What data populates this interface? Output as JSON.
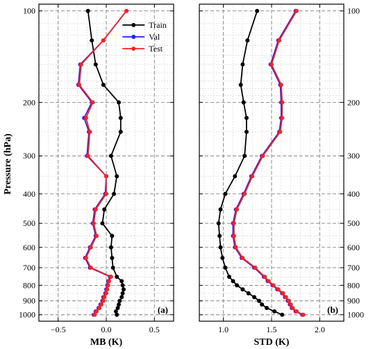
{
  "chart_data": [
    {
      "panel_label": "(a)",
      "type": "line",
      "xlabel": "MB (K)",
      "ylabel": "Pressure (hPa)",
      "xlim": [
        -0.7,
        0.7
      ],
      "ylim": [
        1000,
        100
      ],
      "y_scale": "log",
      "x_ticks": [
        -0.5,
        0.0,
        0.5
      ],
      "x_tick_labels": [
        "−0.5",
        "0.0",
        "0.5"
      ],
      "y_ticks": [
        100,
        200,
        300,
        400,
        500,
        600,
        700,
        800,
        900,
        1000
      ],
      "y_tick_labels": [
        "100",
        "200",
        "300",
        "400",
        "500",
        "600",
        "700",
        "800",
        "900",
        "1000"
      ],
      "grid": true,
      "legend": {
        "placement": "top-right",
        "entries": [
          "Train",
          "Val",
          "Test"
        ]
      },
      "y": [
        100,
        125,
        150,
        175,
        200,
        225,
        250,
        300,
        350,
        400,
        450,
        500,
        550,
        600,
        650,
        700,
        750,
        775,
        800,
        825,
        850,
        875,
        900,
        925,
        950,
        975,
        1000
      ],
      "series": [
        {
          "name": "Train",
          "color": "#000000",
          "values": [
            -0.19,
            -0.15,
            -0.11,
            -0.03,
            0.13,
            0.15,
            0.15,
            0.05,
            0.11,
            0.08,
            -0.02,
            -0.04,
            0.06,
            0.05,
            0.06,
            0.07,
            0.11,
            0.16,
            0.17,
            0.18,
            0.17,
            0.16,
            0.14,
            0.13,
            0.12,
            0.1,
            0.11
          ]
        },
        {
          "name": "Val",
          "color": "#1f1fff",
          "values": [
            0.21,
            -0.03,
            -0.27,
            -0.29,
            -0.15,
            -0.23,
            -0.18,
            -0.2,
            0.0,
            -0.01,
            -0.12,
            -0.14,
            -0.11,
            -0.17,
            -0.22,
            -0.17,
            0.04,
            0.02,
            0.01,
            0.0,
            -0.01,
            -0.03,
            -0.04,
            -0.06,
            -0.08,
            -0.11,
            -0.13
          ]
        },
        {
          "name": "Test",
          "color": "#ff2020",
          "values": [
            0.21,
            -0.03,
            -0.26,
            -0.28,
            -0.14,
            -0.21,
            -0.17,
            -0.19,
            0.0,
            0.0,
            -0.11,
            -0.13,
            -0.1,
            -0.16,
            -0.21,
            -0.16,
            0.05,
            0.03,
            0.02,
            0.01,
            0.0,
            -0.02,
            -0.03,
            -0.05,
            -0.07,
            -0.1,
            -0.12
          ]
        }
      ]
    },
    {
      "panel_label": "(b)",
      "type": "line",
      "xlabel": "STD (K)",
      "xlim": [
        0.75,
        2.25
      ],
      "ylim": [
        1000,
        100
      ],
      "y_scale": "log",
      "x_ticks": [
        1.0,
        1.5,
        2.0
      ],
      "x_tick_labels": [
        "1.0",
        "1.5",
        "2.0"
      ],
      "y_ticks": [
        100,
        200,
        300,
        400,
        500,
        600,
        700,
        800,
        900,
        1000
      ],
      "y_tick_labels": [
        "100",
        "200",
        "300",
        "400",
        "500",
        "600",
        "700",
        "800",
        "900",
        "1000"
      ],
      "grid": true,
      "y": [
        100,
        125,
        150,
        175,
        200,
        225,
        250,
        300,
        350,
        400,
        450,
        500,
        550,
        600,
        650,
        700,
        750,
        775,
        800,
        825,
        850,
        875,
        900,
        925,
        950,
        975,
        1000
      ],
      "series": [
        {
          "name": "Train",
          "color": "#000000",
          "values": [
            1.35,
            1.25,
            1.2,
            1.18,
            1.21,
            1.24,
            1.24,
            1.22,
            1.12,
            1.02,
            0.97,
            0.95,
            0.96,
            0.97,
            0.99,
            1.02,
            1.06,
            1.1,
            1.14,
            1.2,
            1.26,
            1.32,
            1.37,
            1.4,
            1.45,
            1.53,
            1.61
          ]
        },
        {
          "name": "Val",
          "color": "#1f1fff",
          "values": [
            1.75,
            1.57,
            1.49,
            1.59,
            1.6,
            1.6,
            1.58,
            1.4,
            1.29,
            1.21,
            1.13,
            1.1,
            1.1,
            1.12,
            1.19,
            1.32,
            1.42,
            1.46,
            1.51,
            1.56,
            1.61,
            1.64,
            1.67,
            1.69,
            1.71,
            1.75,
            1.82
          ]
        },
        {
          "name": "Test",
          "color": "#ff2020",
          "values": [
            1.76,
            1.58,
            1.5,
            1.6,
            1.61,
            1.61,
            1.59,
            1.41,
            1.3,
            1.22,
            1.14,
            1.11,
            1.11,
            1.13,
            1.2,
            1.33,
            1.43,
            1.47,
            1.52,
            1.57,
            1.62,
            1.65,
            1.68,
            1.7,
            1.72,
            1.76,
            1.83
          ]
        }
      ]
    }
  ]
}
